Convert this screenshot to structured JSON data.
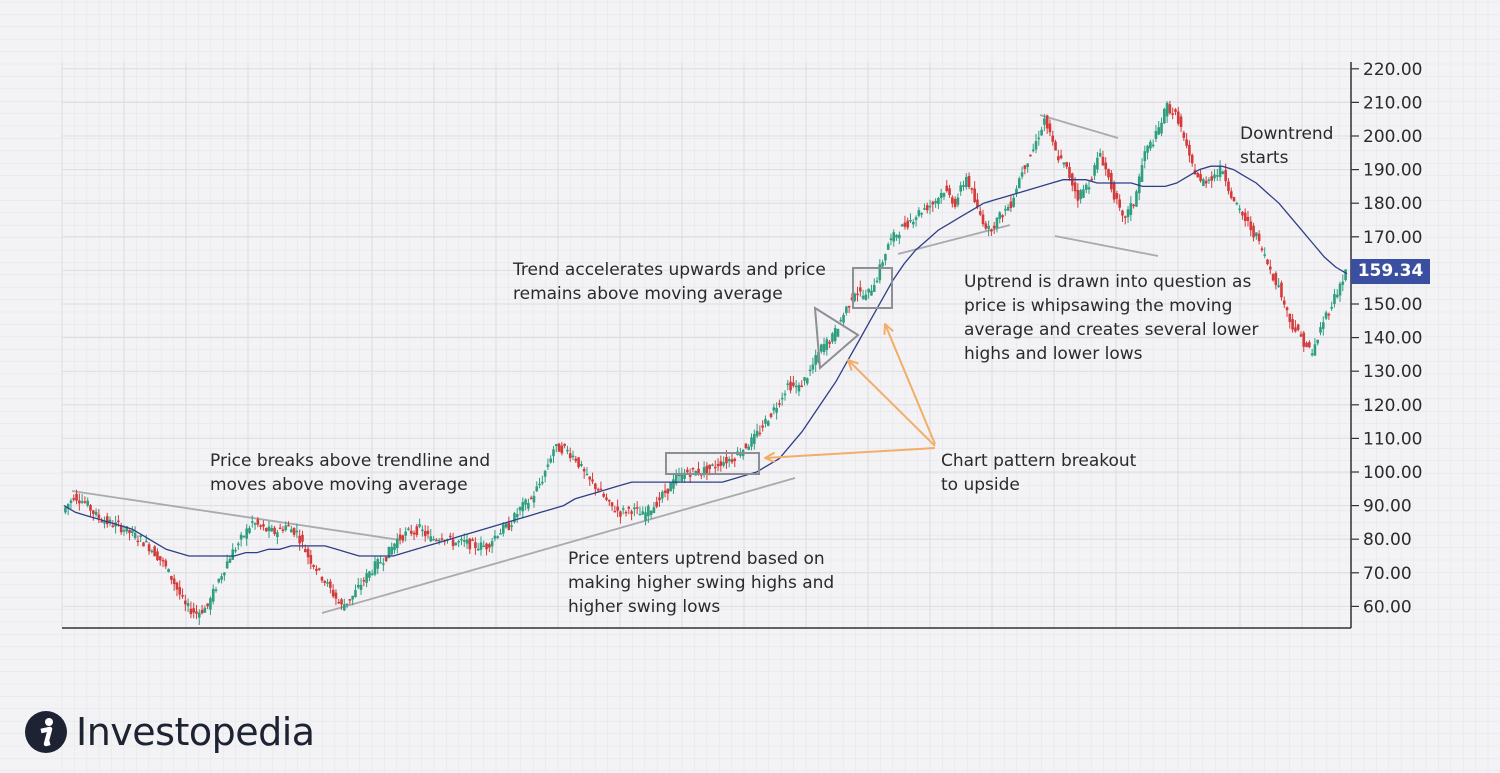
{
  "chart_data": {
    "type": "candlestick",
    "ylim": [
      55,
      223
    ],
    "y_ticks": [
      "220.00",
      "210.00",
      "200.00",
      "190.00",
      "180.00",
      "170.00",
      "160.00",
      "150.00",
      "140.00",
      "130.00",
      "120.00",
      "110.00",
      "100.00",
      "90.00",
      "80.00",
      "70.00",
      "60.00"
    ],
    "last_price_label": "159.34",
    "series": [
      {
        "type": "candlestick",
        "close": [
          88,
          93,
          91,
          87,
          85,
          84,
          82,
          80,
          77,
          73,
          67,
          60,
          58,
          60,
          68,
          75,
          80,
          85,
          83,
          82,
          84,
          82,
          75,
          70,
          65,
          60,
          63,
          68,
          72,
          75,
          80,
          82,
          83,
          80,
          81,
          79,
          79,
          78,
          78,
          82,
          84,
          89,
          92,
          98,
          107,
          107,
          104,
          98,
          95,
          90,
          88,
          89,
          87,
          90,
          94,
          98,
          100,
          100,
          101,
          103,
          104,
          107,
          110,
          115,
          120,
          126,
          125,
          130,
          137,
          140,
          147,
          154,
          152,
          158,
          168,
          172,
          175,
          178,
          180,
          184,
          180,
          188,
          178,
          172,
          176,
          180,
          190,
          196,
          205,
          195,
          190,
          182,
          186,
          195,
          185,
          175,
          180,
          195,
          200,
          209,
          205,
          193,
          186,
          188,
          190,
          180,
          175,
          170,
          162,
          155,
          145,
          140,
          135,
          145,
          152,
          159.34
        ]
      },
      {
        "type": "moving-average",
        "values": [
          90,
          88,
          87,
          86,
          85,
          84,
          83,
          81,
          79,
          77,
          76,
          75,
          75,
          75,
          75,
          75,
          76,
          76,
          77,
          77,
          78,
          78,
          78,
          78,
          77,
          76,
          75,
          75,
          75,
          75,
          76,
          77,
          78,
          79,
          80,
          81,
          82,
          83,
          84,
          85,
          86,
          87,
          88,
          89,
          90,
          92,
          93,
          94,
          95,
          96,
          97,
          97,
          97,
          97,
          97,
          97,
          97,
          97,
          97,
          98,
          99,
          100,
          102,
          104,
          108,
          112,
          117,
          122,
          127,
          133,
          139,
          145,
          151,
          157,
          162,
          166,
          169,
          172,
          174,
          176,
          178,
          180,
          181,
          182,
          183,
          184,
          185,
          186,
          187,
          187,
          187,
          186,
          186,
          186,
          186,
          185,
          185,
          185,
          186,
          188,
          190,
          191,
          191,
          190,
          188,
          186,
          183,
          180,
          176,
          172,
          168,
          164,
          161,
          159
        ]
      }
    ],
    "annotations": [
      {
        "text": "Price breaks above trendline and\nmoves above moving average"
      },
      {
        "text": "Price enters uptrend based on\nmaking higher swing highs and\nhigher swing lows"
      },
      {
        "text": "Trend accelerates upwards and price\nremains above moving average"
      },
      {
        "text": "Chart pattern breakout\nto upside"
      },
      {
        "text": "Uptrend is drawn into question as\nprice is whipsawing the moving\naverage and creates several lower\nhighs and lower lows"
      },
      {
        "text": "Downtrend\nstarts"
      }
    ]
  },
  "colors": {
    "background": "#f3f3f5",
    "grid": "#dcdce2",
    "up": "#2f9e7f",
    "down": "#d43a3a",
    "moving_average": "#2e3f86",
    "trendline": "#a9a9ae",
    "pattern_box": "#8e8e95",
    "arrow": "#f2ad68",
    "badge": "#3b4fa0"
  },
  "brand": {
    "logo_text": "Investopedia",
    "logo_icon": "investopedia-i-icon"
  }
}
